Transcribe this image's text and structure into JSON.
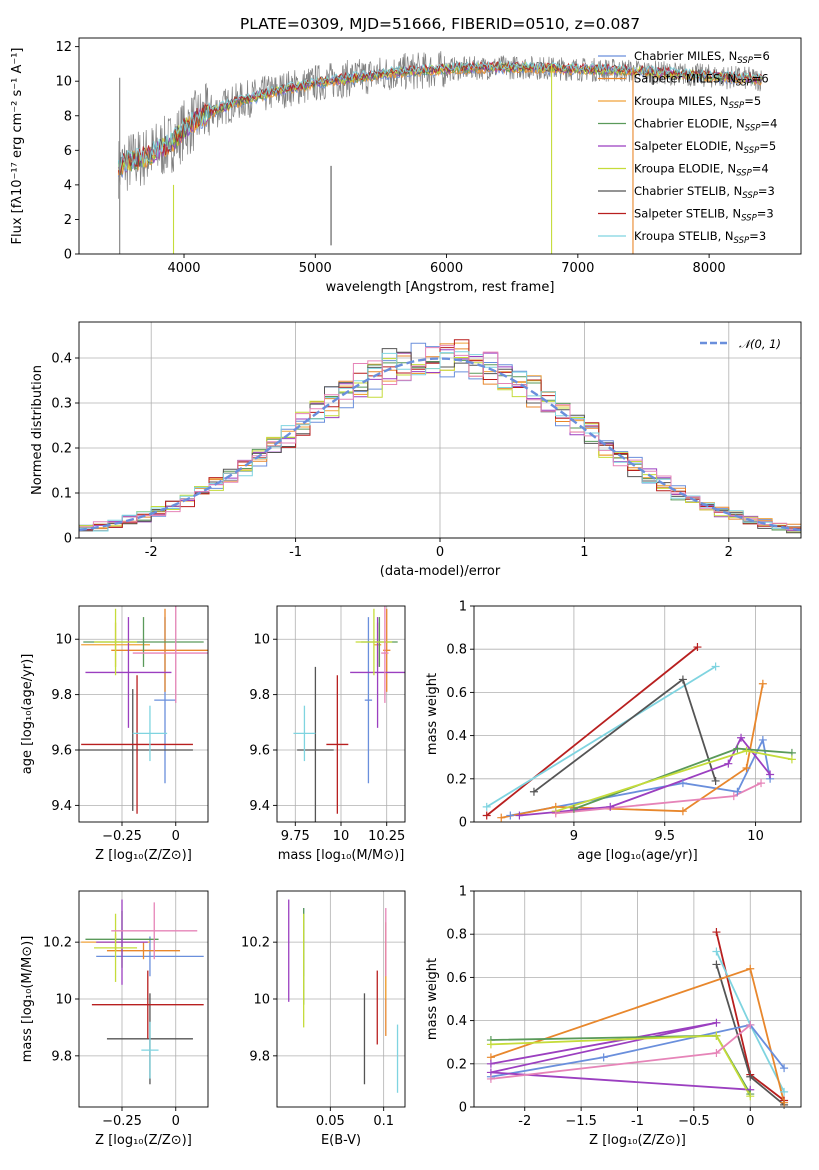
{
  "colors": {
    "Chabrier MILES": "#6a8fdc",
    "Salpeter MILES": "#e8872c",
    "Kroupa MILES": "#f0a23a",
    "Chabrier ELODIE": "#5a9a5a",
    "Salpeter ELODIE": "#9b3fc0",
    "Kroupa ELODIE": "#c5dc3a",
    "Chabrier STELIB": "#555555",
    "Salpeter STELIB": "#b81f1f",
    "Kroupa STELIB": "#7fd4e0",
    "data": "#808080",
    "pink": "#e684b8",
    "normal": "#6a8fdc"
  },
  "chart_data": [
    {
      "id": "spectrum",
      "type": "line",
      "title": "PLATE=0309, MJD=51666, FIBERID=0510, z=0.087",
      "xlabel": "wavelength [Angstrom, rest frame]",
      "ylabel": "Flux [fλ10⁻¹⁷ erg cm⁻² s⁻¹ A⁻¹]",
      "xlim": [
        3200,
        8700
      ],
      "ylim": [
        0,
        12.5
      ],
      "xticks": [
        4000,
        5000,
        6000,
        7000,
        8000
      ],
      "yticks": [
        0,
        2,
        4,
        6,
        8,
        10,
        12
      ],
      "grid": false,
      "legend_position": "right",
      "legend": [
        {
          "name": "Chabrier MILES",
          "nssp": "6"
        },
        {
          "name": "Salpeter MILES",
          "nssp": "6"
        },
        {
          "name": "Kroupa MILES",
          "nssp": "5"
        },
        {
          "name": "Chabrier ELODIE",
          "nssp": "4"
        },
        {
          "name": "Salpeter ELODIE",
          "nssp": "5"
        },
        {
          "name": "Kroupa ELODIE",
          "nssp": "4"
        },
        {
          "name": "Chabrier STELIB",
          "nssp": "3"
        },
        {
          "name": "Salpeter STELIB",
          "nssp": "3"
        },
        {
          "name": "Kroupa STELIB",
          "nssp": "3"
        }
      ],
      "model_curve": {
        "x": [
          3500,
          3600,
          3700,
          3800,
          3900,
          4000,
          4100,
          4200,
          4300,
          4400,
          4500,
          4600,
          4700,
          4800,
          4900,
          5000,
          5100,
          5200,
          5300,
          5400,
          5500,
          5600,
          5800,
          6000,
          6200,
          6400,
          6600,
          6800,
          7000,
          7200,
          7400,
          7600,
          7800,
          8000,
          8200,
          8400
        ],
        "y": [
          5.0,
          5.4,
          5.6,
          6.0,
          6.4,
          7.2,
          7.8,
          8.2,
          8.5,
          8.8,
          9.0,
          9.2,
          9.4,
          9.6,
          9.7,
          9.9,
          10.0,
          10.1,
          10.2,
          10.3,
          10.4,
          10.5,
          10.6,
          10.7,
          10.75,
          10.8,
          10.8,
          10.75,
          10.7,
          10.65,
          10.6,
          10.5,
          10.4,
          10.3,
          10.2,
          10.1
        ]
      },
      "spikes": [
        {
          "x": 3510,
          "y": [
            0,
            10.2
          ]
        },
        {
          "x": 3920,
          "y": [
            0,
            4.0
          ]
        },
        {
          "x": 5120,
          "y": [
            0.5,
            5.1
          ]
        },
        {
          "x": 6800,
          "y": [
            0,
            11.0
          ]
        },
        {
          "x": 7420,
          "y": [
            0,
            10.8
          ]
        }
      ]
    },
    {
      "id": "residuals",
      "type": "line",
      "xlabel": "(data-model)/error",
      "ylabel": "Normed distribution",
      "xlim": [
        -2.5,
        2.5
      ],
      "ylim": [
        0,
        0.48
      ],
      "xticks": [
        -2,
        -1,
        0,
        1,
        2
      ],
      "yticks": [
        0.0,
        0.1,
        0.2,
        0.3,
        0.4
      ],
      "grid": true,
      "legend_position": "top-right",
      "legend": [
        {
          "name": "𝒩(0, 1)"
        }
      ],
      "series": [
        {
          "name": "𝒩(0, 1)",
          "curve": "normal(0,1)"
        }
      ],
      "histogram_bins": 50
    },
    {
      "id": "age_vs_Z",
      "type": "scatter",
      "xlabel": "Z [log₁₀(Z/Z⊙)]",
      "ylabel": "age  [log₁₀(age/yr)]",
      "xlim": [
        -0.45,
        0.15
      ],
      "ylim": [
        9.34,
        10.12
      ],
      "xticks": [
        -0.25,
        0.0
      ],
      "yticks": [
        9.4,
        9.6,
        9.8,
        10.0
      ],
      "grid": true,
      "points": [
        {
          "model": "Chabrier MILES",
          "x": -0.05,
          "y": 9.78,
          "xerr": 0.05,
          "yerr": 0.3
        },
        {
          "model": "Salpeter MILES",
          "x": -0.05,
          "y": 9.96,
          "xerr": 0.25,
          "yerr": 0.15
        },
        {
          "model": "Kroupa MILES",
          "x": -0.28,
          "y": 9.98,
          "xerr": 0.16,
          "yerr": 0.08
        },
        {
          "model": "Chabrier ELODIE",
          "x": -0.15,
          "y": 9.99,
          "xerr": 0.28,
          "yerr": 0.09
        },
        {
          "model": "Salpeter ELODIE",
          "x": -0.22,
          "y": 9.88,
          "xerr": 0.2,
          "yerr": 0.2
        },
        {
          "model": "Kroupa ELODIE",
          "x": -0.28,
          "y": 9.99,
          "xerr": 0.1,
          "yerr": 0.12
        },
        {
          "model": "Chabrier STELIB",
          "x": -0.2,
          "y": 9.6,
          "xerr": 0.28,
          "yerr": 0.22
        },
        {
          "model": "Salpeter STELIB",
          "x": -0.18,
          "y": 9.62,
          "xerr": 0.26,
          "yerr": 0.25
        },
        {
          "model": "Kroupa STELIB",
          "x": -0.12,
          "y": 9.66,
          "xerr": 0.08,
          "yerr": 0.1
        },
        {
          "model": "pink",
          "x": -0.0,
          "y": 9.95,
          "xerr": 0.2,
          "yerr": 0.18
        }
      ]
    },
    {
      "id": "age_vs_mass",
      "type": "scatter",
      "xlabel": "mass [log₁₀(M/M⊙)]",
      "ylabel": "",
      "xlim": [
        9.65,
        10.35
      ],
      "ylim": [
        9.34,
        10.12
      ],
      "xticks": [
        9.75,
        10.0,
        10.25
      ],
      "yticks": [
        9.4,
        9.6,
        9.8,
        10.0
      ],
      "grid": true,
      "points": [
        {
          "model": "Chabrier MILES",
          "x": 10.15,
          "y": 9.78,
          "xerr": 0.02,
          "yerr": 0.3
        },
        {
          "model": "Salpeter MILES",
          "x": 10.25,
          "y": 9.96,
          "xerr": 0.02,
          "yerr": 0.15
        },
        {
          "model": "Kroupa MILES",
          "x": 10.2,
          "y": 9.98,
          "xerr": 0.02,
          "yerr": 0.08
        },
        {
          "model": "Chabrier ELODIE",
          "x": 10.21,
          "y": 9.99,
          "xerr": 0.1,
          "yerr": 0.09
        },
        {
          "model": "Salpeter ELODIE",
          "x": 10.2,
          "y": 9.88,
          "xerr": 0.15,
          "yerr": 0.2
        },
        {
          "model": "Kroupa ELODIE",
          "x": 10.18,
          "y": 9.99,
          "xerr": 0.1,
          "yerr": 0.12
        },
        {
          "model": "Chabrier STELIB",
          "x": 9.86,
          "y": 9.6,
          "xerr": 0.1,
          "yerr": 0.3
        },
        {
          "model": "Salpeter STELIB",
          "x": 9.98,
          "y": 9.62,
          "xerr": 0.06,
          "yerr": 0.25
        },
        {
          "model": "Kroupa STELIB",
          "x": 9.8,
          "y": 9.66,
          "xerr": 0.06,
          "yerr": 0.1
        },
        {
          "model": "pink",
          "x": 10.24,
          "y": 9.95,
          "xerr": 0.02,
          "yerr": 0.18
        }
      ]
    },
    {
      "id": "massweight_vs_age",
      "type": "line",
      "xlabel": "age  [log₁₀(age/yr)]",
      "ylabel": "mass weight",
      "xlim": [
        8.45,
        10.25
      ],
      "ylim": [
        0,
        1.0
      ],
      "xticks": [
        9.0,
        9.5,
        10.0
      ],
      "yticks": [
        0.0,
        0.2,
        0.4,
        0.6,
        0.8,
        1.0
      ],
      "grid": true,
      "series": [
        {
          "name": "Salpeter STELIB",
          "x": [
            8.52,
            9.68
          ],
          "y": [
            0.03,
            0.81
          ]
        },
        {
          "name": "Kroupa STELIB",
          "x": [
            8.52,
            9.78
          ],
          "y": [
            0.07,
            0.72
          ]
        },
        {
          "name": "Chabrier STELIB",
          "x": [
            8.78,
            9.6,
            9.78
          ],
          "y": [
            0.14,
            0.66,
            0.19
          ]
        },
        {
          "name": "Chabrier MILES",
          "x": [
            8.65,
            9.6,
            9.9,
            10.04,
            10.08
          ],
          "y": [
            0.03,
            0.18,
            0.14,
            0.38,
            0.2
          ]
        },
        {
          "name": "Salpeter MILES",
          "x": [
            8.6,
            8.9,
            9.6,
            9.95,
            10.04
          ],
          "y": [
            0.02,
            0.07,
            0.05,
            0.25,
            0.64
          ]
        },
        {
          "name": "Salpeter ELODIE",
          "x": [
            8.7,
            9.2,
            9.85,
            9.92,
            10.08
          ],
          "y": [
            0.03,
            0.07,
            0.27,
            0.39,
            0.22
          ]
        },
        {
          "name": "Chabrier ELODIE",
          "x": [
            9.0,
            9.9,
            10.2
          ],
          "y": [
            0.06,
            0.34,
            0.32
          ]
        },
        {
          "name": "Kroupa ELODIE",
          "x": [
            8.9,
            9.95,
            10.2
          ],
          "y": [
            0.05,
            0.33,
            0.29
          ]
        },
        {
          "name": "pink",
          "x": [
            8.9,
            9.88,
            10.03
          ],
          "y": [
            0.04,
            0.12,
            0.18
          ]
        }
      ]
    },
    {
      "id": "mass_vs_Z",
      "type": "scatter",
      "xlabel": "Z [log₁₀(Z/Z⊙)]",
      "ylabel": "mass [log₁₀(M/M⊙)]",
      "xlim": [
        -0.45,
        0.15
      ],
      "ylim": [
        9.62,
        10.38
      ],
      "xticks": [
        -0.25,
        0.0
      ],
      "yticks": [
        9.8,
        10.0,
        10.2
      ],
      "grid": true,
      "points": [
        {
          "model": "Chabrier MILES",
          "x": -0.12,
          "y": 10.15,
          "xerr": 0.25,
          "yerr": 0.07
        },
        {
          "model": "Salpeter MILES",
          "x": -0.15,
          "y": 10.17,
          "xerr": 0.17,
          "yerr": 0.03
        },
        {
          "model": "Kroupa MILES",
          "x": -0.28,
          "y": 10.2,
          "xerr": 0.16,
          "yerr": 0.03
        },
        {
          "model": "Chabrier ELODIE",
          "x": -0.25,
          "y": 10.21,
          "xerr": 0.17,
          "yerr": 0.1
        },
        {
          "model": "Salpeter ELODIE",
          "x": -0.25,
          "y": 10.2,
          "xerr": 0.12,
          "yerr": 0.15
        },
        {
          "model": "Kroupa ELODIE",
          "x": -0.28,
          "y": 10.18,
          "xerr": 0.1,
          "yerr": 0.12
        },
        {
          "model": "Chabrier STELIB",
          "x": -0.12,
          "y": 9.86,
          "xerr": 0.2,
          "yerr": 0.16
        },
        {
          "model": "Salpeter STELIB",
          "x": -0.13,
          "y": 9.98,
          "xerr": 0.26,
          "yerr": 0.12
        },
        {
          "model": "Kroupa STELIB",
          "x": -0.12,
          "y": 9.82,
          "xerr": 0.04,
          "yerr": 0.1
        },
        {
          "model": "pink",
          "x": -0.1,
          "y": 10.24,
          "xerr": 0.2,
          "yerr": 0.1
        }
      ]
    },
    {
      "id": "mass_vs_EBV",
      "type": "scatter",
      "xlabel": "E(B-V)",
      "ylabel": "",
      "xlim": [
        0.0,
        0.12
      ],
      "ylim": [
        9.62,
        10.38
      ],
      "xticks": [
        0.05,
        0.1
      ],
      "yticks": [
        9.8,
        10.0,
        10.2
      ],
      "grid": true,
      "points": [
        {
          "model": "Chabrier MILES",
          "x": 0.025,
          "y": 10.2,
          "xerr": 0.0,
          "yerr": 0.12
        },
        {
          "model": "Salpeter MILES",
          "x": 0.102,
          "y": 10.07,
          "xerr": 0.0,
          "yerr": 0.2
        },
        {
          "model": "Kroupa MILES",
          "x": 0.102,
          "y": 10.1,
          "xerr": 0.0,
          "yerr": 0.1
        },
        {
          "model": "Chabrier ELODIE",
          "x": 0.025,
          "y": 10.15,
          "xerr": 0.0,
          "yerr": 0.17
        },
        {
          "model": "Salpeter ELODIE",
          "x": 0.011,
          "y": 10.17,
          "xerr": 0.0,
          "yerr": 0.18
        },
        {
          "model": "Kroupa ELODIE",
          "x": 0.025,
          "y": 10.1,
          "xerr": 0.0,
          "yerr": 0.2
        },
        {
          "model": "Chabrier STELIB",
          "x": 0.082,
          "y": 9.86,
          "xerr": 0.0,
          "yerr": 0.16
        },
        {
          "model": "Salpeter STELIB",
          "x": 0.094,
          "y": 9.97,
          "xerr": 0.0,
          "yerr": 0.13
        },
        {
          "model": "Kroupa STELIB",
          "x": 0.113,
          "y": 9.79,
          "xerr": 0.0,
          "yerr": 0.12
        },
        {
          "model": "pink",
          "x": 0.102,
          "y": 10.2,
          "xerr": 0.0,
          "yerr": 0.12
        }
      ]
    },
    {
      "id": "massweight_vs_Z",
      "type": "line",
      "xlabel": "Z [log₁₀(Z/Z⊙)]",
      "ylabel": "mass weight",
      "xlim": [
        -2.45,
        0.45
      ],
      "ylim": [
        0,
        1.0
      ],
      "xticks": [
        -2.0,
        -1.5,
        -1.0,
        -0.5,
        0.0
      ],
      "yticks": [
        0.0,
        0.2,
        0.4,
        0.6,
        0.8,
        1.0
      ],
      "grid": true,
      "series": [
        {
          "name": "Salpeter STELIB",
          "x": [
            -0.3,
            0.0,
            0.3
          ],
          "y": [
            0.81,
            0.15,
            0.03
          ]
        },
        {
          "name": "Kroupa STELIB",
          "x": [
            -0.3,
            0.0,
            0.3
          ],
          "y": [
            0.72,
            0.38,
            0.07
          ]
        },
        {
          "name": "Chabrier STELIB",
          "x": [
            -0.3,
            0.0,
            0.3
          ],
          "y": [
            0.66,
            0.14,
            0.01
          ]
        },
        {
          "name": "Salpeter MILES",
          "x": [
            -2.3,
            0.0,
            0.3
          ],
          "y": [
            0.23,
            0.64,
            0.02
          ]
        },
        {
          "name": "Chabrier MILES",
          "x": [
            -2.3,
            -1.3,
            0.0,
            0.3
          ],
          "y": [
            0.14,
            0.23,
            0.38,
            0.18
          ]
        },
        {
          "name": "Salpeter ELODIE",
          "x": [
            -2.3,
            -0.3,
            -2.3,
            0.0
          ],
          "y": [
            0.2,
            0.39,
            0.16,
            0.08
          ]
        },
        {
          "name": "Chabrier ELODIE",
          "x": [
            -2.3,
            -0.3,
            0.0
          ],
          "y": [
            0.31,
            0.33,
            0.06
          ]
        },
        {
          "name": "Kroupa ELODIE",
          "x": [
            -2.3,
            -0.3,
            0.0
          ],
          "y": [
            0.29,
            0.33,
            0.05
          ]
        },
        {
          "name": "pink",
          "x": [
            -2.3,
            -0.3,
            0.0
          ],
          "y": [
            0.13,
            0.25,
            0.38
          ]
        }
      ]
    }
  ]
}
